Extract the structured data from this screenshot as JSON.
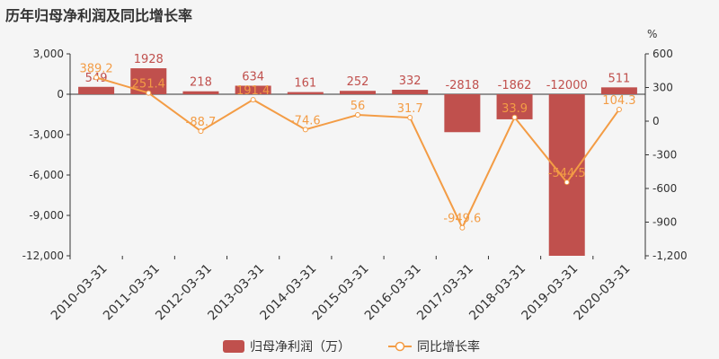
{
  "title": "历年归母净利润及同比增长率",
  "chart_data": {
    "type": "bar",
    "title": "历年归母净利润及同比增长率",
    "categories": [
      "2010-03-31",
      "2011-03-31",
      "2012-03-31",
      "2013-03-31",
      "2014-03-31",
      "2015-03-31",
      "2016-03-31",
      "2017-03-31",
      "2018-03-31",
      "2019-03-31",
      "2020-03-31"
    ],
    "series": [
      {
        "name": "归母净利润（万）",
        "type": "bar",
        "axis": "left",
        "color": "#c0504d",
        "values": [
          549,
          1928,
          218,
          634,
          161,
          252,
          332,
          -2818,
          -1862,
          -12000,
          511
        ],
        "labels": [
          "549",
          "1928",
          "218",
          "634",
          "161",
          "252",
          "332",
          "-2818",
          "-1862",
          "-12000",
          "511"
        ]
      },
      {
        "name": "同比增长率",
        "type": "line",
        "axis": "right",
        "color": "#f39c45",
        "values": [
          389.2,
          251.4,
          -88.7,
          191.4,
          -74.6,
          56,
          31.7,
          -949.6,
          33.9,
          -544.5,
          104.3
        ],
        "labels": [
          "389.2",
          "251.4",
          "-88.7",
          "191.4",
          "-74.6",
          "56",
          "31.7",
          "-949.6",
          "33.9",
          "-544.5",
          "104.3"
        ]
      }
    ],
    "left_axis": {
      "min": -12000,
      "max": 3000,
      "ticks": [
        3000,
        0,
        -3000,
        -6000,
        -9000,
        -12000
      ],
      "tick_labels": [
        "3,000",
        "0",
        "-3,000",
        "-6,000",
        "-9,000",
        "-12,000"
      ]
    },
    "right_axis": {
      "min": -1200,
      "max": 600,
      "unit": "%",
      "ticks": [
        600,
        300,
        0,
        -300,
        -600,
        -900,
        -1200
      ],
      "tick_labels": [
        "600",
        "300",
        "0",
        "-300",
        "-600",
        "-900",
        "-1,200"
      ]
    },
    "grid": false,
    "legend_position": "bottom-center"
  }
}
